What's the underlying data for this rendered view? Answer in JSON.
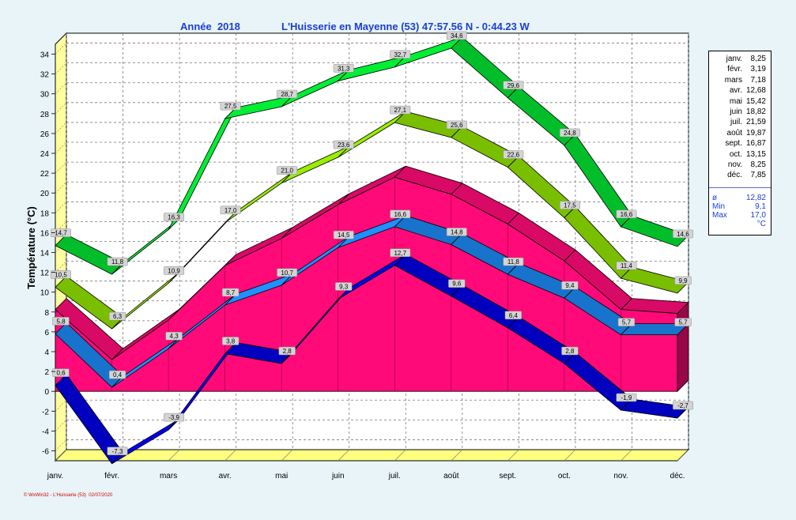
{
  "header": {
    "year_label": "Année  2018",
    "station_label": "L'Huisserie en Mayenne (53) 47:57.56 N - 0:44.23 W"
  },
  "footer": {
    "credit": "© WxWin32 - L'Huisserie (53)  02/07/2020"
  },
  "legend": {
    "rows": [
      {
        "month": "janv.",
        "value": "8,25"
      },
      {
        "month": "févr.",
        "value": "3,19"
      },
      {
        "month": "mars",
        "value": "7,18"
      },
      {
        "month": "avr.",
        "value": "12,68"
      },
      {
        "month": "mai",
        "value": "15,42"
      },
      {
        "month": "juin",
        "value": "18,82"
      },
      {
        "month": "juil.",
        "value": "21,59"
      },
      {
        "month": "août",
        "value": "19,87"
      },
      {
        "month": "sept.",
        "value": "16,87"
      },
      {
        "month": "oct.",
        "value": "13,15"
      },
      {
        "month": "nov.",
        "value": "8,25"
      },
      {
        "month": "déc.",
        "value": "7,85"
      }
    ],
    "stats": [
      {
        "key": "ø",
        "value": "12,82"
      },
      {
        "key": "Min",
        "value": "9,1"
      },
      {
        "key": "Max",
        "value": "17,0"
      },
      {
        "key": "",
        "value": "°C"
      }
    ]
  },
  "chart_data": {
    "type": "line",
    "title": "",
    "xlabel": "",
    "ylabel": "Température  (°C)",
    "ylim": [
      -7,
      35
    ],
    "yticks": [
      -6,
      -4,
      -2,
      0,
      2,
      4,
      6,
      8,
      10,
      12,
      14,
      16,
      18,
      20,
      22,
      24,
      26,
      28,
      30,
      32,
      34
    ],
    "grid": true,
    "categories": [
      "janv.",
      "févr.",
      "mars",
      "avr.",
      "mai",
      "juin",
      "juil.",
      "août",
      "sept.",
      "oct.",
      "nov.",
      "déc."
    ],
    "series": [
      {
        "key": "abs_max",
        "color": "#00ee33",
        "values": [
          14.7,
          11.8,
          16.3,
          27.5,
          28.7,
          31.3,
          32.7,
          34.6,
          29.6,
          24.8,
          16.6,
          14.6
        ],
        "labels": [
          "14,7",
          "11,8",
          "16,3",
          "27,5",
          "28,7",
          "31,3",
          "32,7",
          "34,6",
          "29,6",
          "24,8",
          "16,6",
          "14,6"
        ]
      },
      {
        "key": "mean_max",
        "color": "#99ee00",
        "values": [
          10.5,
          6.3,
          10.9,
          17.0,
          21.0,
          23.6,
          27.1,
          25.6,
          22.6,
          17.5,
          11.4,
          9.9
        ],
        "labels": [
          "10,5",
          "6,3",
          "10,9",
          "17,0",
          "21,0",
          "23,6",
          "27,1",
          "25,6",
          "22,6",
          "17,5",
          "11,4",
          "9,9"
        ]
      },
      {
        "key": "mean",
        "color": "#ff0a78",
        "values": [
          8.25,
          3.19,
          7.18,
          12.68,
          15.42,
          18.82,
          21.59,
          19.87,
          16.87,
          13.15,
          8.25,
          7.85
        ]
      },
      {
        "key": "mean_min",
        "color": "#1e90ff",
        "values": [
          5.8,
          0.4,
          4.3,
          8.7,
          10.7,
          14.5,
          16.6,
          14.8,
          11.8,
          9.4,
          5.7,
          5.7
        ],
        "labels": [
          "5,8",
          "0,4",
          "4,3",
          "8,7",
          "10,7",
          "14,5",
          "16,6",
          "14,8",
          "11,8",
          "9,4",
          "5,7",
          "5,7"
        ]
      },
      {
        "key": "abs_min",
        "color": "#0000ee",
        "values": [
          0.6,
          -7.3,
          -3.9,
          3.8,
          2.8,
          9.3,
          12.7,
          9.6,
          6.4,
          2.8,
          -1.9,
          -2.7
        ],
        "labels": [
          "0,6",
          "-7,3",
          "-3,9",
          "3,8",
          "2,8",
          "9,3",
          "12,7",
          "9,6",
          "6,4",
          "2,8",
          "-1,9",
          "-2,7"
        ]
      }
    ]
  }
}
